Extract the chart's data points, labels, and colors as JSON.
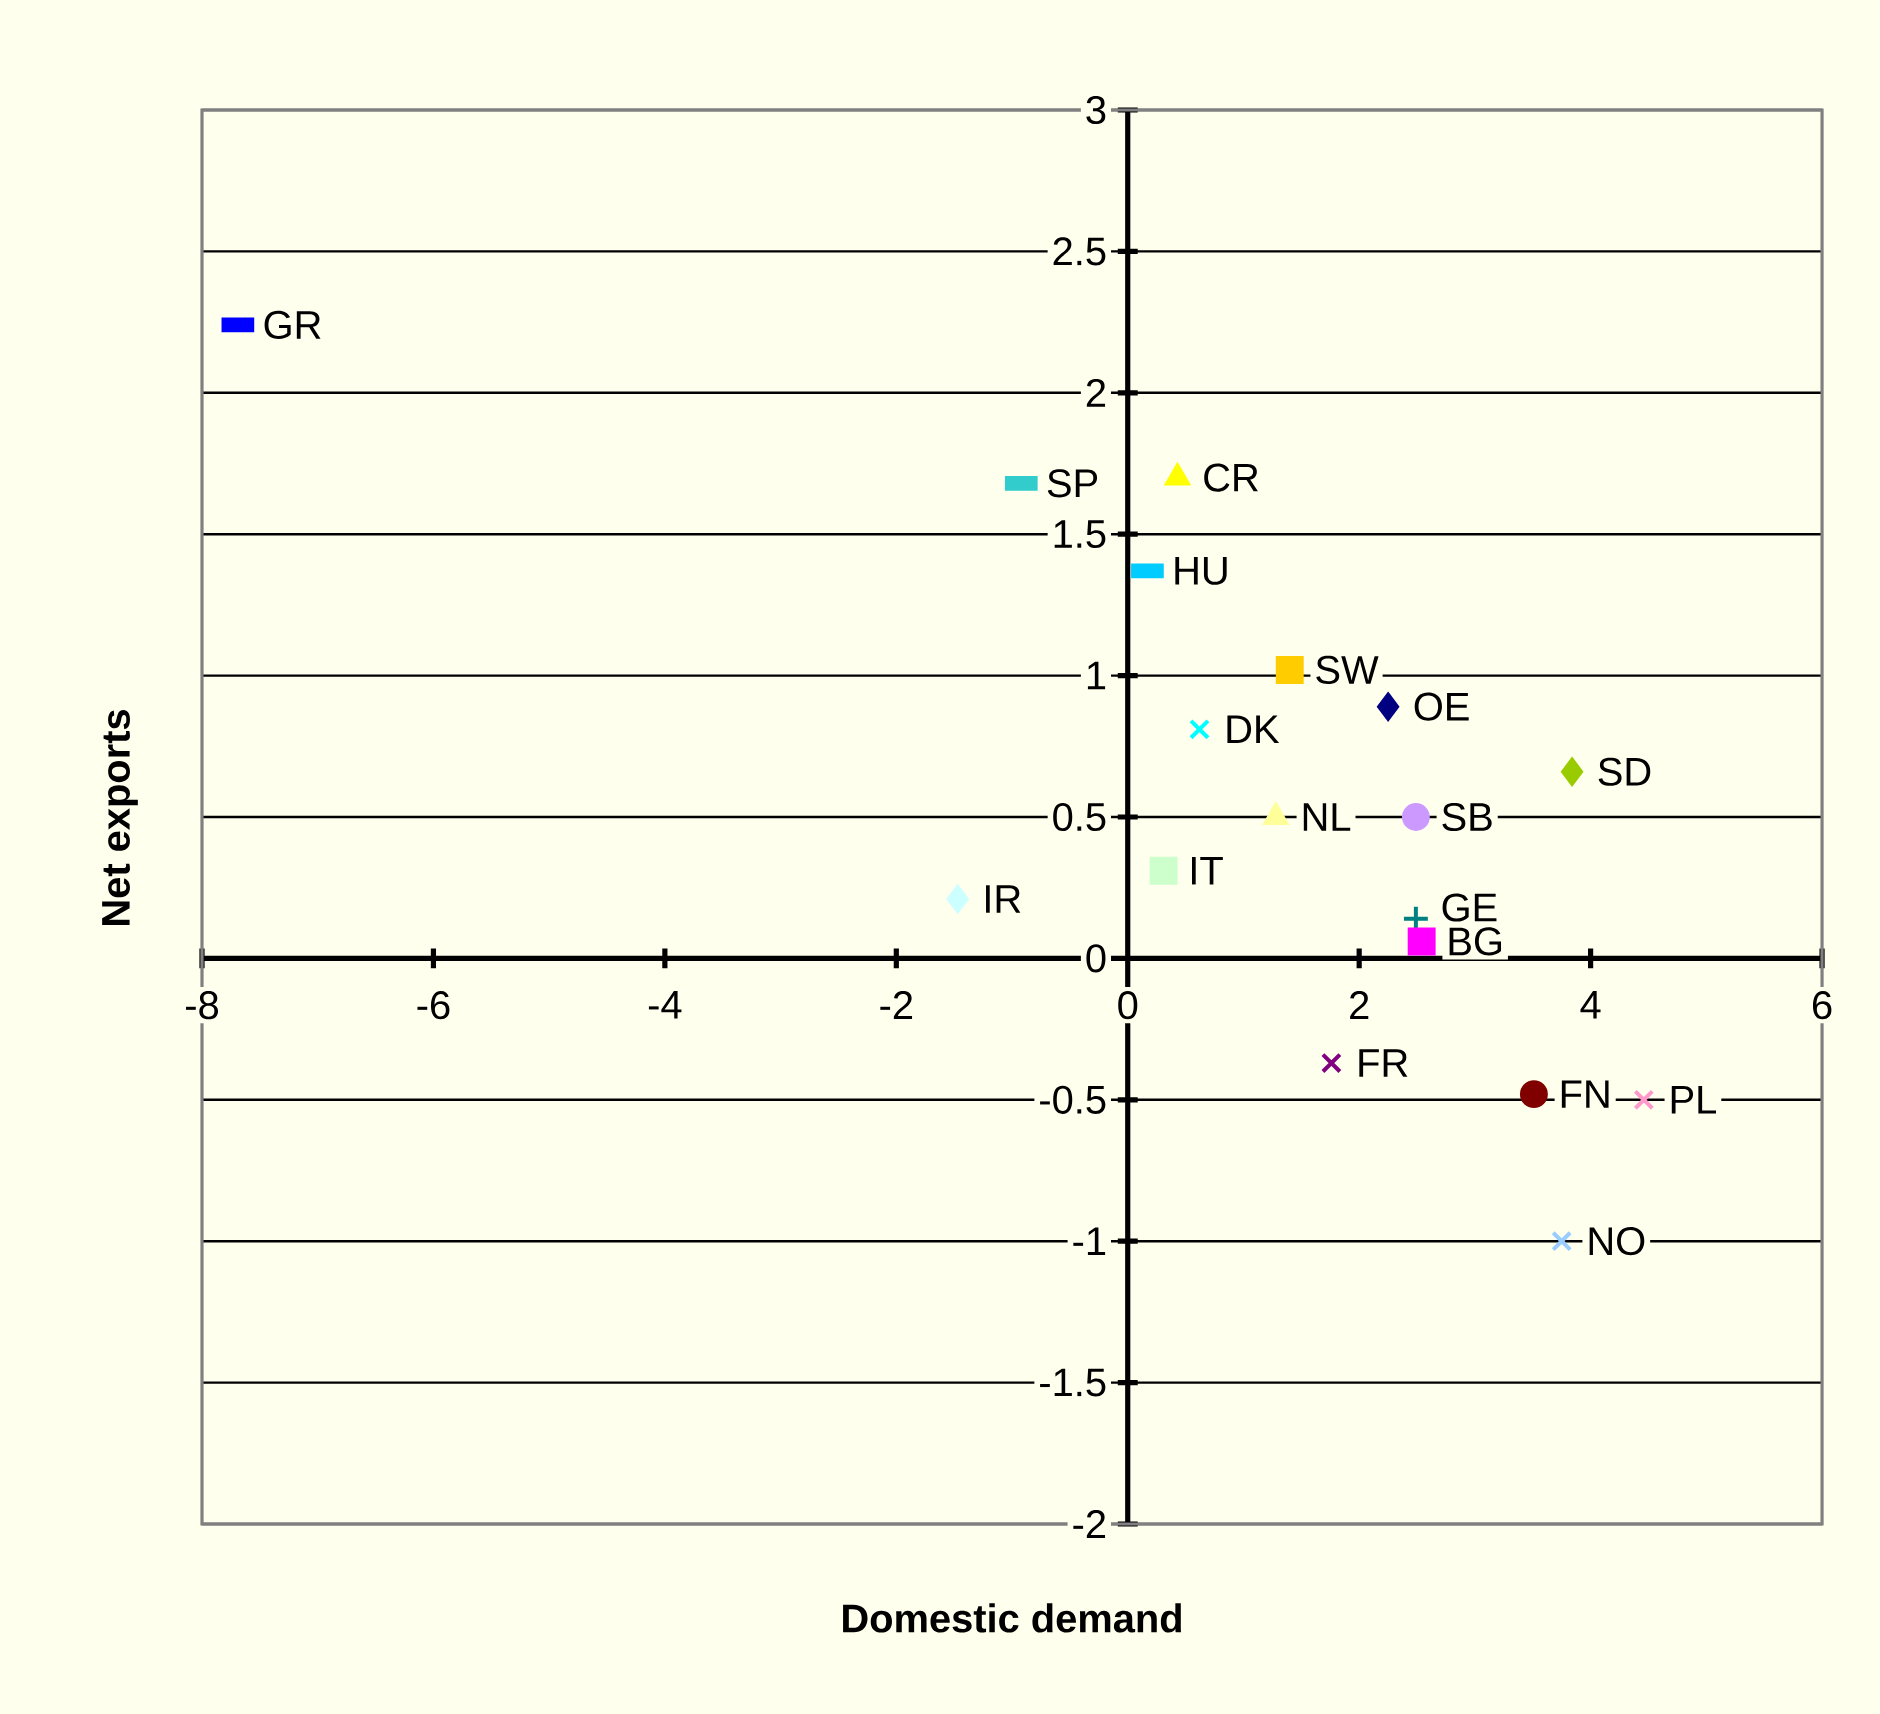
{
  "chart_data": {
    "type": "scatter",
    "xlabel": "Domestic demand",
    "ylabel": "Net exports",
    "xlim": [
      -8,
      6
    ],
    "ylim": [
      -2,
      3
    ],
    "xticks": [
      -8,
      -6,
      -4,
      -2,
      0,
      2,
      4,
      6
    ],
    "yticks": [
      -2,
      -1.5,
      -1,
      -0.5,
      0,
      0.5,
      1,
      1.5,
      2,
      2.5,
      3
    ],
    "grid": "y",
    "series": [
      {
        "name": "GR",
        "color": "#0000ff",
        "x": [
          -7.69
        ],
        "values": [
          2.24
        ]
      },
      {
        "name": "SP",
        "color": "#33cccc",
        "x": [
          -0.92
        ],
        "values": [
          1.68
        ]
      },
      {
        "name": "CR",
        "color": "#ffff00",
        "marker": "triangle",
        "x": [
          0.43
        ],
        "values": [
          1.7
        ]
      },
      {
        "name": "HU",
        "color": "#00ccff",
        "x": [
          0.17
        ],
        "values": [
          1.37
        ]
      },
      {
        "name": "SW",
        "color": "#ffcc00",
        "marker": "square",
        "x": [
          1.4
        ],
        "values": [
          1.02
        ]
      },
      {
        "name": "OE",
        "color": "#000080",
        "marker": "diamond",
        "x": [
          2.25
        ],
        "values": [
          0.89
        ]
      },
      {
        "name": "DK",
        "color": "#00ffff",
        "marker": "cross",
        "x": [
          0.62
        ],
        "values": [
          0.81
        ]
      },
      {
        "name": "SD",
        "color": "#99cc00",
        "marker": "diamond",
        "x": [
          3.84
        ],
        "values": [
          0.66
        ]
      },
      {
        "name": "NL",
        "color": "#ffff99",
        "marker": "triangle",
        "x": [
          1.28
        ],
        "values": [
          0.5
        ]
      },
      {
        "name": "SB",
        "color": "#cc99ff",
        "marker": "circle",
        "x": [
          2.49
        ],
        "values": [
          0.5
        ]
      },
      {
        "name": "IT",
        "color": "#ccffcc",
        "marker": "square",
        "x": [
          0.31
        ],
        "values": [
          0.31
        ]
      },
      {
        "name": "IR",
        "color": "#ccffff",
        "marker": "diamond",
        "x": [
          -1.47
        ],
        "values": [
          0.21
        ]
      },
      {
        "name": "GE",
        "color": "#008080",
        "marker": "plus",
        "x": [
          2.49
        ],
        "values": [
          0.14
        ]
      },
      {
        "name": "BG",
        "color": "#ff00ff",
        "marker": "square",
        "x": [
          2.54
        ],
        "values": [
          0.06
        ]
      },
      {
        "name": "FR",
        "color": "#800080",
        "marker": "cross",
        "x": [
          1.76
        ],
        "values": [
          -0.37
        ]
      },
      {
        "name": "FN",
        "color": "#800000",
        "marker": "circle",
        "x": [
          3.51
        ],
        "values": [
          -0.48
        ]
      },
      {
        "name": "PL",
        "color": "#ff99cc",
        "marker": "cross",
        "x": [
          4.46
        ],
        "values": [
          -0.5
        ]
      },
      {
        "name": "NO",
        "color": "#99ccff",
        "marker": "cross",
        "x": [
          3.75
        ],
        "values": [
          -1.0
        ]
      }
    ]
  }
}
